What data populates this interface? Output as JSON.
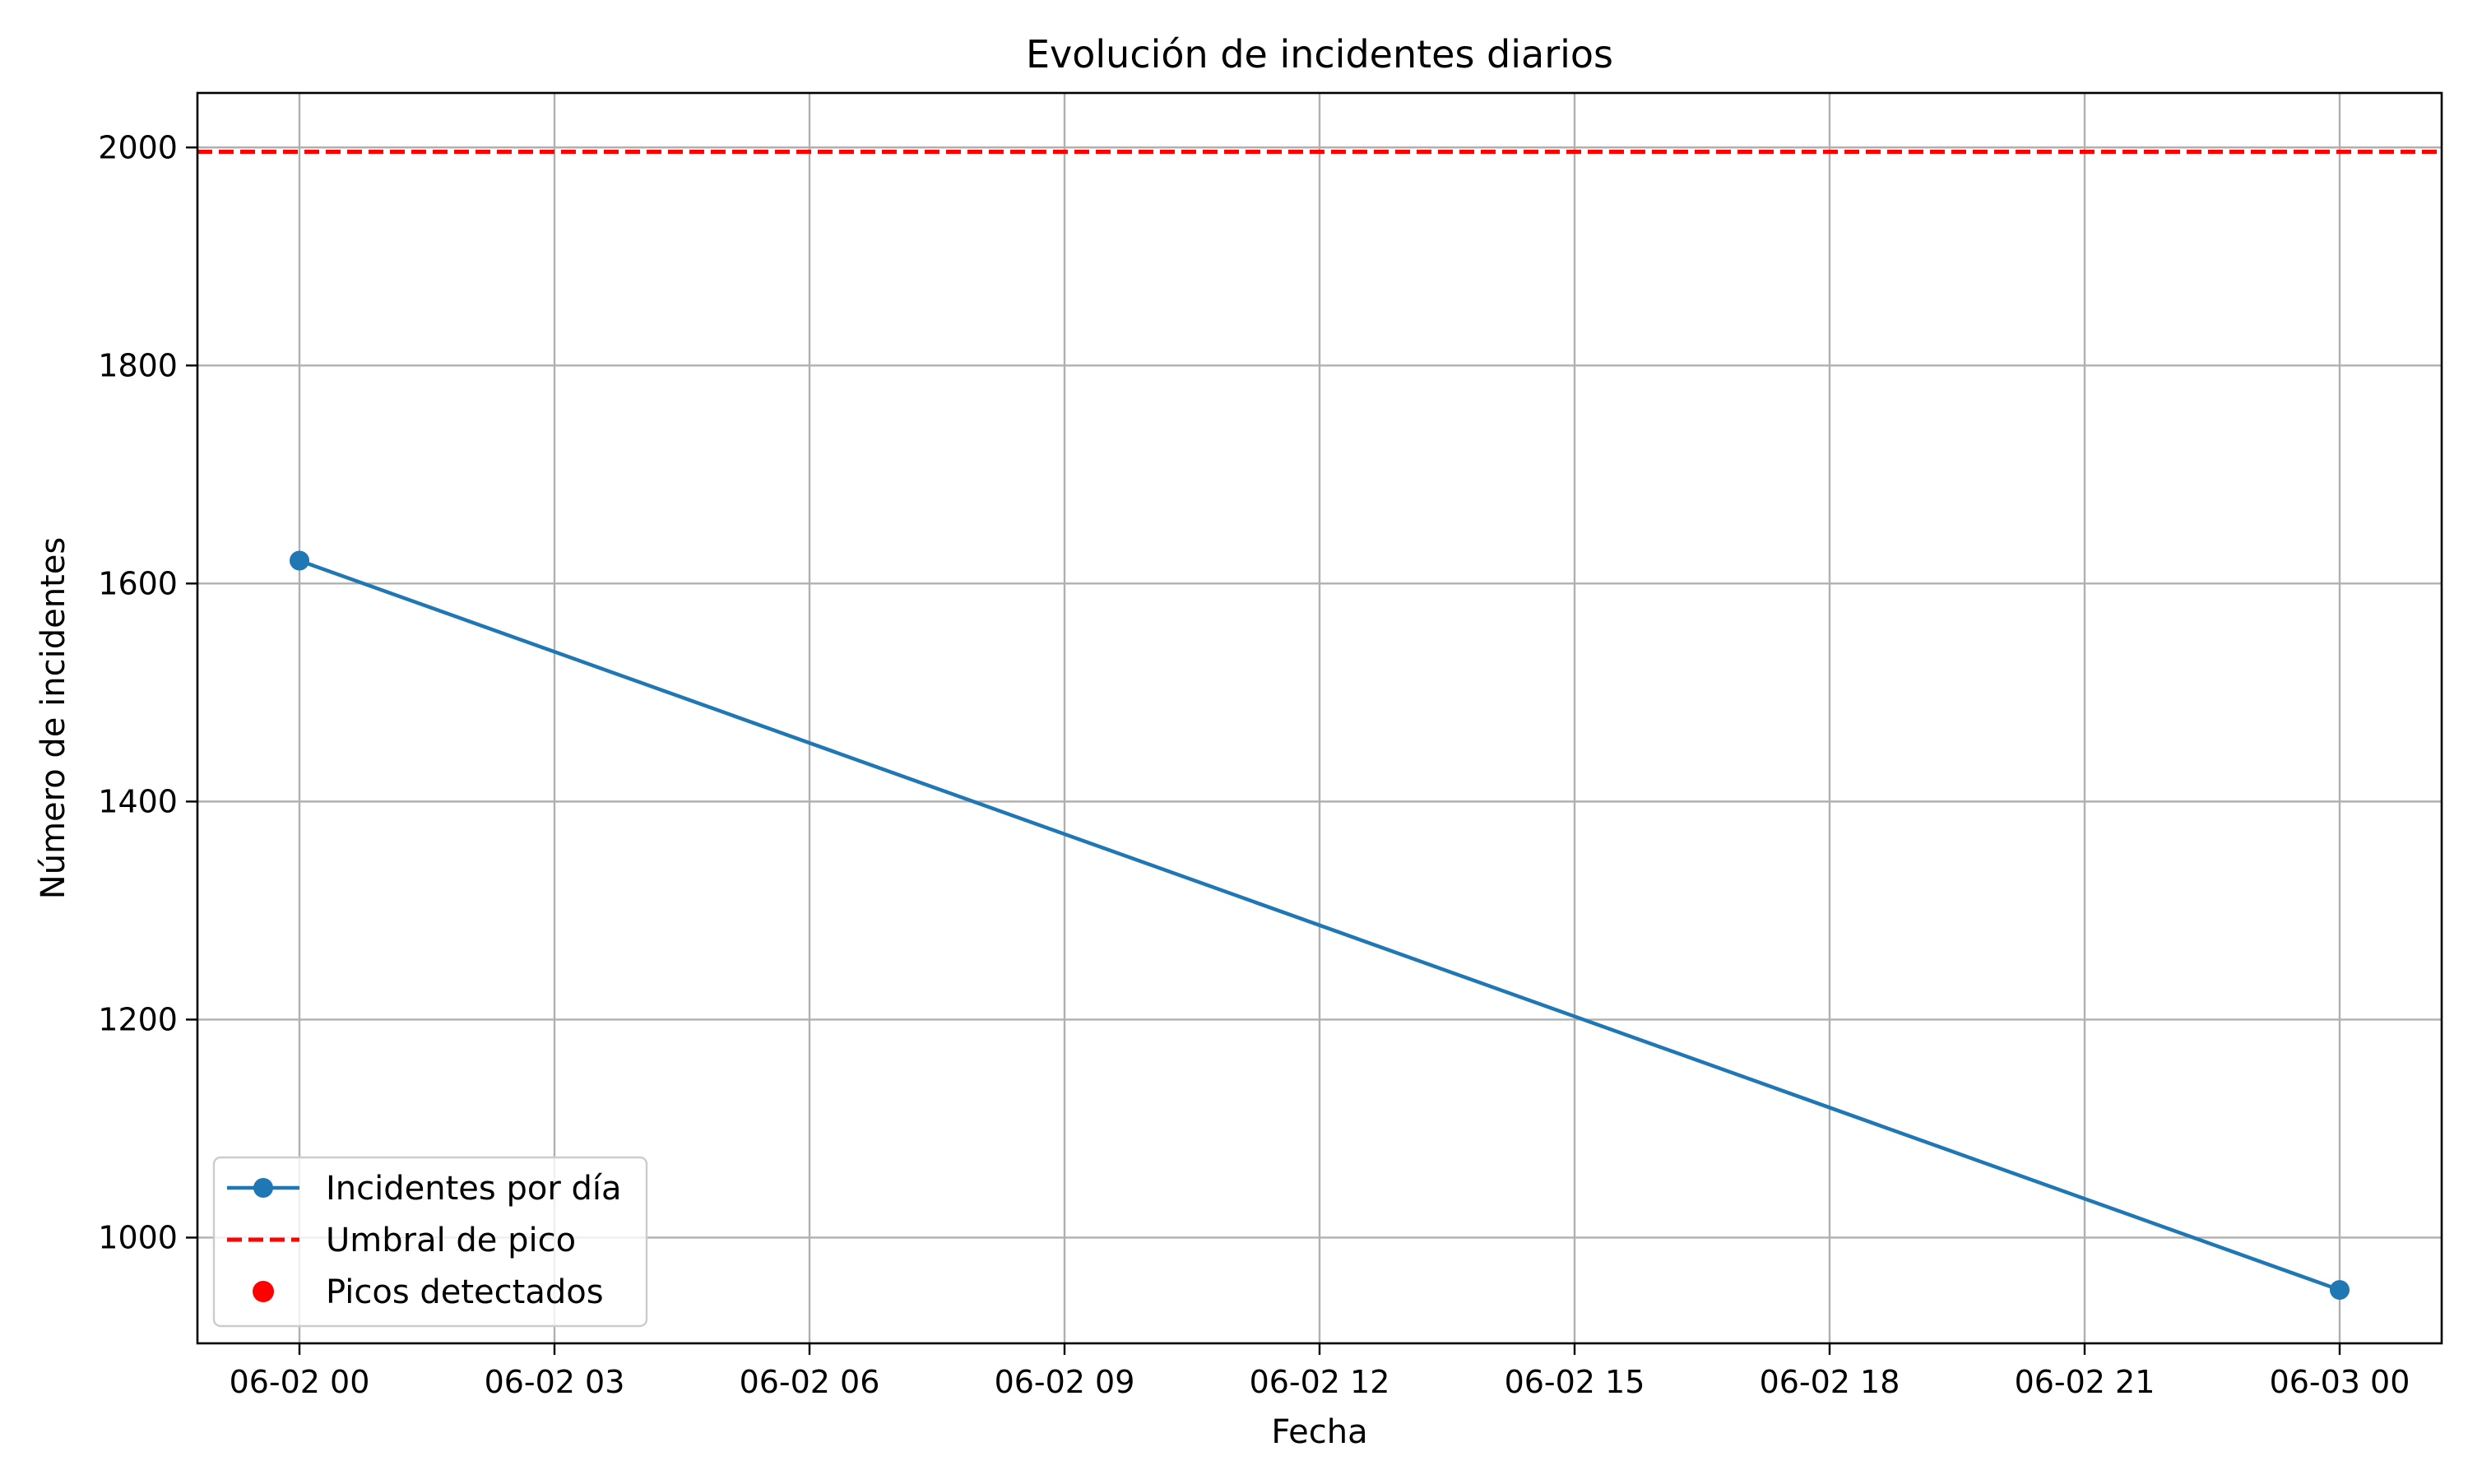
{
  "chart_data": {
    "type": "line",
    "title": "Evolución de incidentes diarios",
    "xlabel": "Fecha",
    "ylabel": "Número de incidentes",
    "x_tick_labels": [
      "06-02 00",
      "06-02 03",
      "06-02 06",
      "06-02 09",
      "06-02 12",
      "06-02 15",
      "06-02 18",
      "06-02 21",
      "06-03 00"
    ],
    "y_tick_labels": [
      "1000",
      "1200",
      "1400",
      "1600",
      "1800",
      "2000"
    ],
    "xlim": [
      "06-01 22:48",
      "06-03 01:12"
    ],
    "ylim": [
      903,
      2050
    ],
    "grid": true,
    "legend_position": "lower-left",
    "series": [
      {
        "name": "Incidentes por día",
        "style": "line-with-markers",
        "color": "#1f77b4",
        "x": [
          "06-02 00:00",
          "06-03 00:00"
        ],
        "values": [
          1621,
          952
        ]
      },
      {
        "name": "Umbral de pico",
        "style": "dashed-horizontal-line",
        "color": "#ff0000",
        "value": 1996
      },
      {
        "name": "Picos detectados",
        "style": "scatter",
        "color": "#ff0000",
        "x": [],
        "values": []
      }
    ]
  }
}
